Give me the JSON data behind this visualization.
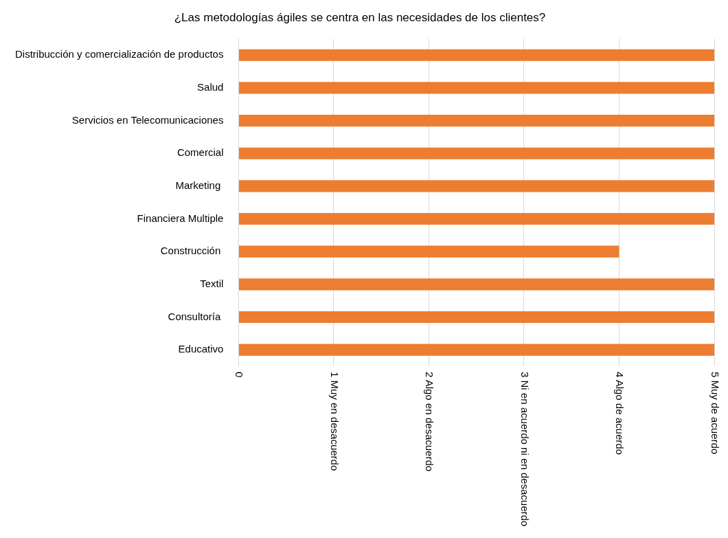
{
  "chart_data": {
    "type": "bar",
    "orientation": "horizontal",
    "title": "¿Las metodologías ágiles se centra en las necesidades de los clientes?",
    "categories": [
      "Distribucción y comercialización de productos",
      "Salud",
      "Servicios en Telecomunicaciones",
      "Comercial",
      "Marketing ",
      "Financiera Multiple",
      "Construcción ",
      "Textil",
      "Consultoría ",
      "Educativo"
    ],
    "values": [
      5,
      5,
      5,
      5,
      5,
      5,
      4,
      5,
      5,
      5
    ],
    "color": "#ed7d31",
    "xlim": [
      0,
      5
    ],
    "xticks": [
      0,
      {
        "value": 1,
        "label": "1 Muy en desacuerdo"
      },
      {
        "value": 2,
        "label": "2 Algo en desacuerdo"
      },
      {
        "value": 3,
        "label": "3 Ni en acuerdo ni en desacuerdo"
      },
      {
        "value": 4,
        "label": "4 Algo de acuerdo"
      },
      {
        "value": 5,
        "label": "5 Muy de acuerdo"
      }
    ],
    "grid": "x"
  }
}
